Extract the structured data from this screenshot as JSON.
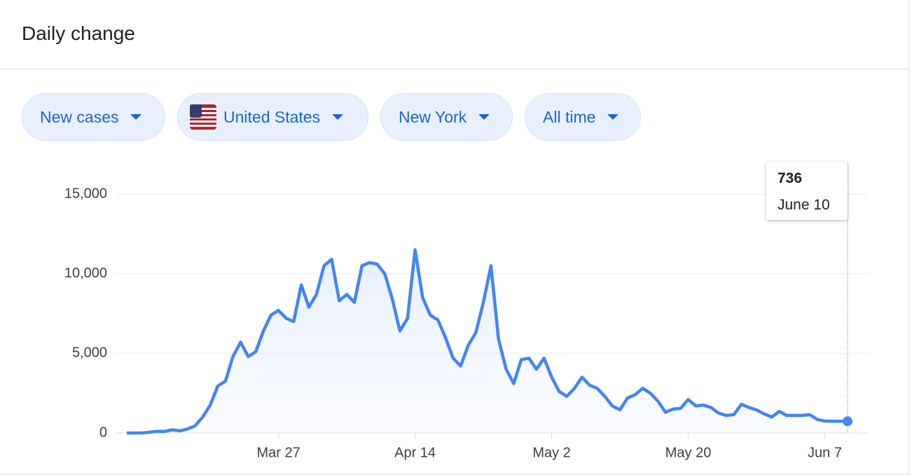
{
  "header": {
    "title": "Daily change"
  },
  "filters": [
    "New cases",
    "United States",
    "New York",
    "All time"
  ],
  "tooltip": {
    "value": 736,
    "date": "June 10"
  },
  "chart_data": {
    "type": "area",
    "categories": [
      null,
      null,
      null,
      null,
      null,
      null,
      null,
      null,
      null,
      null,
      null,
      null,
      null,
      null,
      null,
      null,
      null,
      null,
      null,
      null,
      "Mar 27",
      null,
      null,
      null,
      null,
      null,
      null,
      null,
      null,
      null,
      null,
      null,
      null,
      null,
      null,
      null,
      null,
      null,
      "Apr 14",
      null,
      null,
      null,
      null,
      null,
      null,
      null,
      null,
      null,
      null,
      null,
      null,
      null,
      null,
      null,
      null,
      null,
      "May 2",
      null,
      null,
      null,
      null,
      null,
      null,
      null,
      null,
      null,
      null,
      null,
      null,
      null,
      null,
      null,
      null,
      null,
      "May 20",
      null,
      null,
      null,
      null,
      null,
      null,
      null,
      null,
      null,
      null,
      null,
      null,
      null,
      null,
      null,
      null,
      null,
      "Jun 7",
      null,
      null,
      null
    ],
    "series": [
      {
        "name": "New cases",
        "color": "#4285f4",
        "values": [
          0,
          0,
          0,
          50,
          100,
          100,
          200,
          130,
          250,
          450,
          1000,
          1750,
          2950,
          3250,
          4800,
          5700,
          4800,
          5100,
          6400,
          7400,
          7700,
          7200,
          7000,
          9300,
          7900,
          8700,
          10500,
          10900,
          8300,
          8700,
          8200,
          10500,
          10700,
          10600,
          10000,
          8400,
          6400,
          7200,
          11500,
          8500,
          7400,
          7100,
          6000,
          4700,
          4200,
          5500,
          6300,
          8200,
          10500,
          5900,
          4000,
          3100,
          4600,
          4700,
          4000,
          4700,
          3500,
          2600,
          2300,
          2800,
          3500,
          3000,
          2800,
          2300,
          1700,
          1450,
          2200,
          2400,
          2800,
          2500,
          2000,
          1300,
          1500,
          1550,
          2100,
          1700,
          1750,
          1600,
          1250,
          1100,
          1150,
          1800,
          1600,
          1450,
          1200,
          1000,
          1350,
          1100,
          1100,
          1100,
          1150,
          850,
          750,
          740,
          740,
          736
        ]
      }
    ],
    "ylim": [
      0,
      15000
    ],
    "yticks": [
      0,
      {
        "value": 5000,
        "label": "5,000"
      },
      {
        "value": 10000,
        "label": "10,000"
      },
      {
        "value": 15000,
        "label": "15,000"
      }
    ],
    "grid": true
  }
}
